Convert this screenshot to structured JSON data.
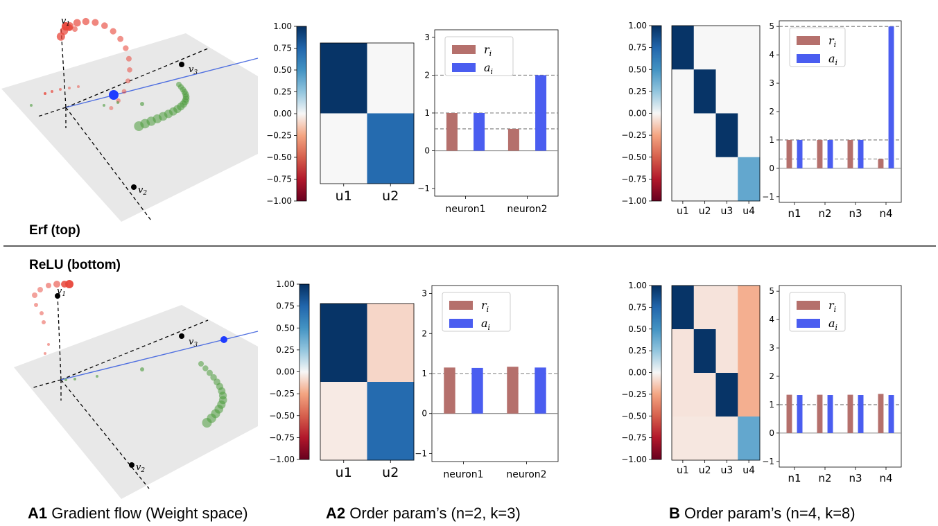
{
  "row_labels": {
    "top": "Erf (top)",
    "bottom": "ReLU (bottom)"
  },
  "panels": {
    "a1": {
      "tag": "A1",
      "title": "Gradient flow (Weight space)"
    },
    "a2": {
      "tag": "A2",
      "title": "Order param’s (n=2, k=3)"
    },
    "b": {
      "tag": "B",
      "title": "Order param’s (n=4, k=8)"
    }
  },
  "weight_space": {
    "axis_labels": [
      "v",
      "v",
      "v"
    ],
    "axis_subscripts": [
      "1",
      "2",
      "3"
    ],
    "colors": {
      "plane": "#e8e8e8",
      "axis": "#000000",
      "line": "#4f6fe0",
      "red_traj": "#e8463a",
      "green_traj": "#4a9a3a",
      "point": "#1f3cff"
    }
  },
  "colorbar": {
    "ticks": [
      "1.00",
      "0.75",
      "0.50",
      "0.25",
      "0.00",
      "−0.25",
      "−0.50",
      "−0.75",
      "−1.00"
    ],
    "colormap": "RdBu",
    "range": [
      -1,
      1
    ]
  },
  "legend": {
    "r": "r",
    "a": "a",
    "sub": "i",
    "r_color": "#b5706c",
    "a_color": "#4a5df0"
  },
  "chart_data": [
    {
      "type": "heatmap",
      "row": "top",
      "panel": "A2",
      "xticklabels": [
        "u1",
        "u2"
      ],
      "values": [
        [
          0.98,
          0.0
        ],
        [
          0.0,
          0.72
        ]
      ],
      "vmin": -1,
      "vmax": 1
    },
    {
      "type": "bar",
      "row": "top",
      "panel": "A2",
      "categories": [
        "neuron1",
        "neuron2"
      ],
      "series": [
        {
          "name": "r_i",
          "values": [
            1.0,
            0.58
          ]
        },
        {
          "name": "a_i",
          "values": [
            1.0,
            2.0
          ]
        }
      ],
      "ylim": [
        -1.2,
        3.2
      ],
      "yticks": [
        "−1",
        "0",
        "1",
        "2",
        "3"
      ],
      "hlines": [
        0,
        0.58,
        1,
        2
      ]
    },
    {
      "type": "heatmap",
      "row": "top",
      "panel": "B",
      "xticklabels": [
        "u1",
        "u2",
        "u3",
        "u4"
      ],
      "values": [
        [
          0.98,
          0,
          0,
          0
        ],
        [
          0,
          0.98,
          0,
          0
        ],
        [
          0,
          0,
          0.98,
          0
        ],
        [
          0,
          0,
          0,
          0.4
        ]
      ],
      "vmin": -1,
      "vmax": 1
    },
    {
      "type": "bar",
      "row": "top",
      "panel": "B",
      "categories": [
        "n1",
        "n2",
        "n3",
        "n4"
      ],
      "series": [
        {
          "name": "r_i",
          "values": [
            1.0,
            1.0,
            1.0,
            0.33
          ]
        },
        {
          "name": "a_i",
          "values": [
            1.0,
            1.0,
            1.0,
            5.0
          ]
        }
      ],
      "ylim": [
        -1.2,
        5.2
      ],
      "yticks": [
        "−1",
        "0",
        "1",
        "2",
        "3",
        "4",
        "5"
      ],
      "hlines": [
        0,
        0.33,
        1,
        5
      ]
    },
    {
      "type": "heatmap",
      "row": "bottom",
      "panel": "A2",
      "xticklabels": [
        "u1",
        "u2"
      ],
      "values": [
        [
          0.98,
          -0.1
        ],
        [
          -0.04,
          0.72
        ]
      ],
      "vmin": -1,
      "vmax": 1
    },
    {
      "type": "bar",
      "row": "bottom",
      "panel": "A2",
      "categories": [
        "neuron1",
        "neuron2"
      ],
      "series": [
        {
          "name": "r_i",
          "values": [
            1.15,
            1.17
          ]
        },
        {
          "name": "a_i",
          "values": [
            1.14,
            1.15
          ]
        }
      ],
      "ylim": [
        -1.2,
        3.2
      ],
      "yticks": [
        "−1",
        "0",
        "1",
        "2",
        "3"
      ],
      "hlines": [
        0,
        1
      ]
    },
    {
      "type": "heatmap",
      "row": "bottom",
      "panel": "B",
      "xticklabels": [
        "u1",
        "u2",
        "u3",
        "u4"
      ],
      "values": [
        [
          0.98,
          -0.06,
          -0.06,
          -0.22
        ],
        [
          -0.06,
          0.98,
          -0.06,
          -0.22
        ],
        [
          -0.06,
          -0.06,
          0.98,
          -0.22
        ],
        [
          -0.05,
          -0.05,
          -0.05,
          0.4
        ]
      ],
      "vmin": -1,
      "vmax": 1
    },
    {
      "type": "bar",
      "row": "bottom",
      "panel": "B",
      "categories": [
        "n1",
        "n2",
        "n3",
        "n4"
      ],
      "series": [
        {
          "name": "r_i",
          "values": [
            1.35,
            1.35,
            1.35,
            1.38
          ]
        },
        {
          "name": "a_i",
          "values": [
            1.34,
            1.34,
            1.34,
            1.34
          ]
        }
      ],
      "ylim": [
        -1.2,
        5.2
      ],
      "yticks": [
        "−1",
        "0",
        "1",
        "2",
        "3",
        "4",
        "5"
      ],
      "hlines": [
        0,
        1
      ]
    }
  ]
}
